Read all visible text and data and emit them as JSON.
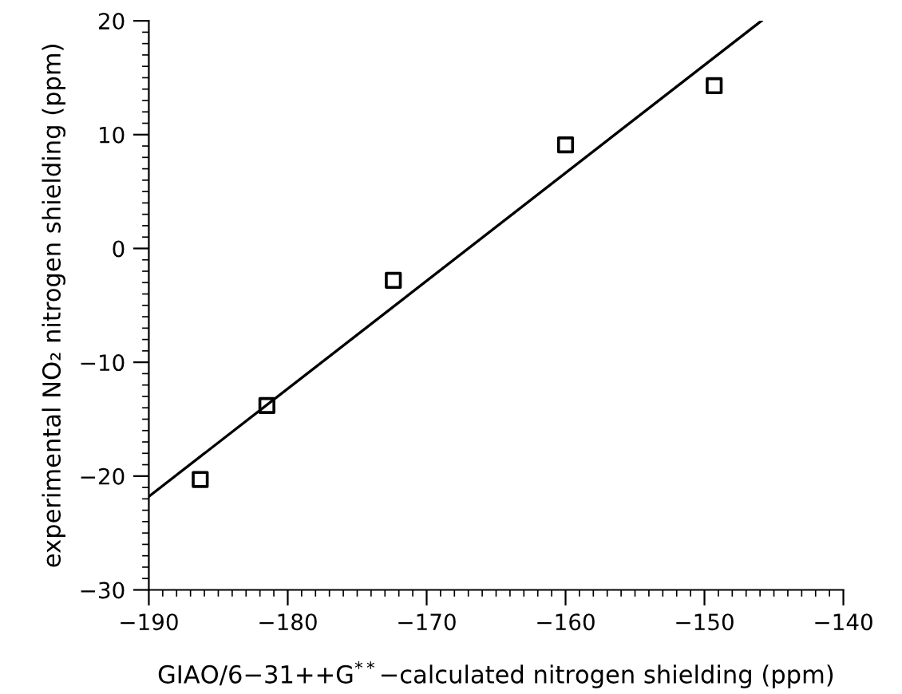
{
  "chart_data": {
    "type": "scatter",
    "xlabel": "GIAO/6−31++G$^{**}$−calculated nitrogen shielding (ppm)",
    "ylabel": "experimental NO₂ nitrogen shielding (ppm)",
    "xlim": [
      -190,
      -140
    ],
    "ylim": [
      -30,
      20
    ],
    "xticks": [
      -190,
      -180,
      -170,
      -160,
      -150,
      -140
    ],
    "yticks": [
      -30,
      -20,
      -10,
      0,
      10,
      20
    ],
    "grid": false,
    "legend": false,
    "series": [
      {
        "color": "#000000",
        "marker": "square",
        "x": [
          -186.3,
          -181.5,
          -172.4,
          -160.0,
          -149.3
        ],
        "values": [
          -20.3,
          -13.8,
          -2.8,
          9.1,
          14.3
        ]
      },
      {
        "type": "line",
        "color": "#000000",
        "marker": "none",
        "line_style": "solid",
        "x": [
          -190,
          -145.9
        ],
        "values": [
          -21.8,
          20
        ]
      }
    ]
  }
}
